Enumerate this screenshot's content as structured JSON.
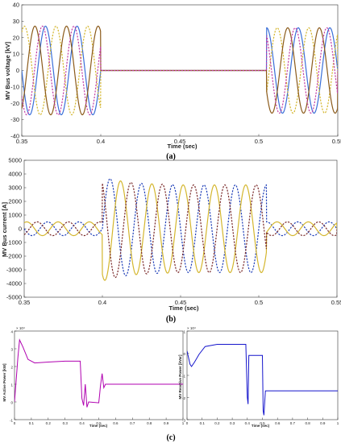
{
  "chart_data": [
    {
      "id": "a",
      "type": "line",
      "caption": "(a)",
      "xlabel": "Time (sec)",
      "ylabel": "MV Bus voltage [kV]",
      "xlim": [
        0.35,
        0.55
      ],
      "ylim": [
        -40,
        40
      ],
      "x_ticks": [
        "0.35",
        "0.4",
        "0.45",
        "0.5",
        "0.55"
      ],
      "y_ticks": [
        "-40",
        "-30",
        "-20",
        "-10",
        "0",
        "10",
        "20",
        "30",
        "40"
      ],
      "frequency_hz": 50,
      "segments": [
        {
          "start": 0.35,
          "end": 0.4,
          "amplitude": 27
        },
        {
          "start": 0.4,
          "end": 0.505,
          "amplitude": 0
        },
        {
          "start": 0.505,
          "end": 0.55,
          "amplitude": 26
        }
      ],
      "series": [
        {
          "color": "#3a6fd8",
          "phase_deg": 0,
          "dash": false
        },
        {
          "color": "#d4b62e",
          "phase_deg": -120,
          "dash": true
        },
        {
          "color": "#8b5a1a",
          "phase_deg": 120,
          "dash": false
        },
        {
          "color": "#c23fa6",
          "phase_deg": 35,
          "dash": true
        }
      ]
    },
    {
      "id": "b",
      "type": "line",
      "caption": "(b)",
      "xlabel": "Time (sec)",
      "ylabel": "MV Bus current [A]",
      "xlim": [
        0.35,
        0.55
      ],
      "ylim": [
        -5000,
        5000
      ],
      "x_ticks": [
        "0.35",
        "0.4",
        "0.45",
        "0.5",
        "0.55"
      ],
      "y_ticks": [
        "-5000",
        "-4000",
        "-3000",
        "-2000",
        "-1000",
        "0",
        "1000",
        "2000",
        "3000",
        "4000",
        "5000"
      ],
      "frequency_hz": 50,
      "segments": [
        {
          "start": 0.35,
          "end": 0.4,
          "amplitude": 500
        },
        {
          "start": 0.4,
          "end": 0.505,
          "amplitude": 3200
        },
        {
          "start": 0.505,
          "end": 0.55,
          "amplitude": 500
        }
      ],
      "transient": {
        "start": 0.4,
        "peak": 4600,
        "decay_sec": 0.015
      },
      "series": [
        {
          "color": "#1f3fb8",
          "phase_deg": 0,
          "dash": true
        },
        {
          "color": "#d4b62e",
          "phase_deg": -120,
          "dash": false
        },
        {
          "color": "#7a2a2a",
          "phase_deg": 120,
          "dash": true
        }
      ]
    },
    {
      "id": "c-left",
      "type": "line",
      "caption": "(c)",
      "xlabel": "Time (sec)",
      "ylabel": "MV Active Power [kW]",
      "multiplier": "× 10⁴",
      "xlim": [
        0,
        1
      ],
      "ylim": [
        -1,
        4
      ],
      "x_ticks": [
        "0",
        "0.1",
        "0.2",
        "0.3",
        "0.4",
        "0.5",
        "0.6",
        "0.7",
        "0.8",
        "0.9",
        "1"
      ],
      "y_ticks": [
        "-1",
        "0",
        "1",
        "2",
        "3",
        "4"
      ],
      "series": [
        {
          "color": "#b000b0",
          "points": [
            [
              0,
              0
            ],
            [
              0.02,
              2.5
            ],
            [
              0.03,
              3.5
            ],
            [
              0.05,
              3.1
            ],
            [
              0.08,
              2.4
            ],
            [
              0.12,
              2.2
            ],
            [
              0.2,
              2.25
            ],
            [
              0.3,
              2.3
            ],
            [
              0.39,
              2.3
            ],
            [
              0.4,
              0.2
            ],
            [
              0.41,
              -0.2
            ],
            [
              0.42,
              1.0
            ],
            [
              0.43,
              -0.3
            ],
            [
              0.44,
              0.0
            ],
            [
              0.5,
              -0.05
            ],
            [
              0.505,
              0.4
            ],
            [
              0.51,
              0.9
            ],
            [
              0.52,
              1.6
            ],
            [
              0.53,
              0.8
            ],
            [
              0.54,
              1.0
            ],
            [
              0.6,
              1.0
            ],
            [
              1.0,
              1.0
            ]
          ]
        }
      ]
    },
    {
      "id": "c-right",
      "type": "line",
      "xlabel": "Time (sec)",
      "ylabel": "MV Reactive Power [kVar]",
      "multiplier": "× 10⁴",
      "xlim": [
        0,
        1
      ],
      "ylim": [
        -3,
        1
      ],
      "x_ticks": [
        "0",
        "0.1",
        "0.2",
        "0.3",
        "0.4",
        "0.5",
        "0.6",
        "0.7",
        "0.8",
        "0.9",
        "1"
      ],
      "y_ticks": [
        "-3",
        "-2",
        "-1",
        "0",
        "1"
      ],
      "series": [
        {
          "color": "#1515cc",
          "points": [
            [
              0,
              0.1
            ],
            [
              0.02,
              -0.5
            ],
            [
              0.03,
              -0.6
            ],
            [
              0.05,
              -0.4
            ],
            [
              0.08,
              -0.05
            ],
            [
              0.12,
              0.3
            ],
            [
              0.2,
              0.4
            ],
            [
              0.3,
              0.4
            ],
            [
              0.39,
              0.4
            ],
            [
              0.4,
              -2.0
            ],
            [
              0.405,
              -2.3
            ],
            [
              0.41,
              -0.1
            ],
            [
              0.5,
              -0.1
            ],
            [
              0.505,
              -2.6
            ],
            [
              0.51,
              -2.8
            ],
            [
              0.52,
              -1.7
            ],
            [
              0.6,
              -1.7
            ],
            [
              1.0,
              -1.7
            ]
          ]
        }
      ]
    }
  ]
}
